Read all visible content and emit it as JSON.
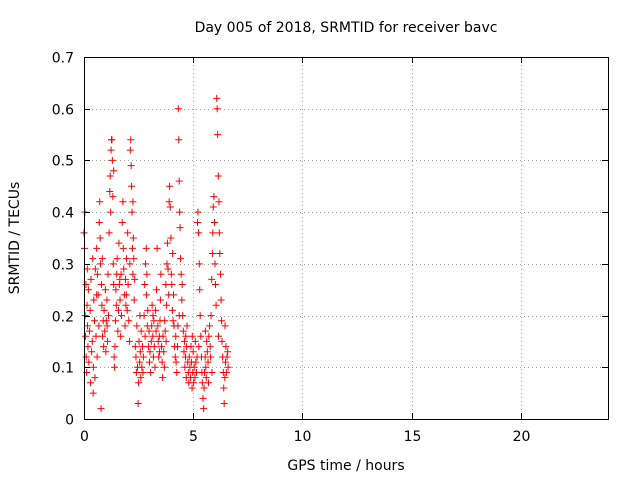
{
  "chart_data": {
    "type": "scatter",
    "title": "Day 005 of 2018, SRMTID for receiver bavc",
    "xlabel": "GPS time / hours",
    "ylabel": "SRMTID / TECUs",
    "xlim": [
      0,
      24
    ],
    "ylim": [
      0,
      0.7
    ],
    "x_ticks": [
      0,
      5,
      10,
      15,
      20
    ],
    "x_tick_labels": [
      "0",
      "5",
      "10",
      "15",
      "20"
    ],
    "y_ticks": [
      0,
      0.1,
      0.2,
      0.3,
      0.4,
      0.5,
      0.6,
      0.7
    ],
    "y_tick_labels": [
      "0",
      "0.1",
      "0.2",
      "0.3",
      "0.4",
      "0.5",
      "0.6",
      "0.7"
    ],
    "grid": true,
    "marker": "+",
    "marker_color": "#ff0000",
    "series": [
      {
        "name": "SRMTID",
        "points": [
          [
            0.0,
            0.36
          ],
          [
            0.02,
            0.33
          ],
          [
            0.04,
            0.4
          ],
          [
            0.05,
            0.2
          ],
          [
            0.07,
            0.16
          ],
          [
            0.09,
            0.26
          ],
          [
            0.1,
            0.12
          ],
          [
            0.12,
            0.09
          ],
          [
            0.14,
            0.22
          ],
          [
            0.16,
            0.18
          ],
          [
            0.18,
            0.14
          ],
          [
            0.2,
            0.25
          ],
          [
            0.22,
            0.11
          ],
          [
            0.25,
            0.17
          ],
          [
            0.28,
            0.21
          ],
          [
            0.3,
            0.07
          ],
          [
            0.32,
            0.27
          ],
          [
            0.35,
            0.13
          ],
          [
            0.38,
            0.15
          ],
          [
            0.4,
            0.31
          ],
          [
            0.43,
            0.1
          ],
          [
            0.45,
            0.23
          ],
          [
            0.48,
            0.19
          ],
          [
            0.5,
            0.08
          ],
          [
            0.52,
            0.29
          ],
          [
            0.55,
            0.16
          ],
          [
            0.58,
            0.33
          ],
          [
            0.6,
            0.12
          ],
          [
            0.62,
            0.28
          ],
          [
            0.65,
            0.24
          ],
          [
            0.68,
            0.18
          ],
          [
            0.7,
            0.38
          ],
          [
            0.72,
            0.42
          ],
          [
            0.74,
            0.35
          ],
          [
            0.76,
            0.3
          ],
          [
            0.78,
            0.02
          ],
          [
            0.8,
            0.26
          ],
          [
            0.82,
            0.22
          ],
          [
            0.85,
            0.16
          ],
          [
            0.88,
            0.19
          ],
          [
            0.9,
            0.14
          ],
          [
            0.92,
            0.21
          ],
          [
            0.95,
            0.17
          ],
          [
            0.98,
            0.25
          ],
          [
            1.0,
            0.13
          ],
          [
            1.02,
            0.19
          ],
          [
            1.05,
            0.23
          ],
          [
            1.08,
            0.15
          ],
          [
            1.1,
            0.28
          ],
          [
            1.12,
            0.2
          ],
          [
            1.15,
            0.36
          ],
          [
            1.18,
            0.44
          ],
          [
            1.2,
            0.47
          ],
          [
            1.22,
            0.4
          ],
          [
            1.24,
            0.52
          ],
          [
            1.26,
            0.54
          ],
          [
            1.28,
            0.54
          ],
          [
            1.3,
            0.5
          ],
          [
            1.32,
            0.43
          ],
          [
            1.34,
            0.3
          ],
          [
            1.36,
            0.26
          ],
          [
            1.38,
            0.12
          ],
          [
            1.4,
            0.1
          ],
          [
            1.42,
            0.14
          ],
          [
            1.44,
            0.19
          ],
          [
            1.46,
            0.25
          ],
          [
            1.48,
            0.22
          ],
          [
            1.5,
            0.28
          ],
          [
            1.52,
            0.31
          ],
          [
            1.55,
            0.17
          ],
          [
            1.58,
            0.21
          ],
          [
            1.6,
            0.34
          ],
          [
            1.62,
            0.26
          ],
          [
            1.65,
            0.23
          ],
          [
            1.68,
            0.16
          ],
          [
            1.7,
            0.28
          ],
          [
            1.72,
            0.2
          ],
          [
            1.75,
            0.38
          ],
          [
            1.78,
            0.42
          ],
          [
            1.8,
            0.33
          ],
          [
            1.82,
            0.29
          ],
          [
            1.85,
            0.24
          ],
          [
            1.88,
            0.18
          ],
          [
            1.9,
            0.27
          ],
          [
            1.92,
            0.22
          ],
          [
            1.95,
            0.31
          ],
          [
            1.98,
            0.21
          ],
          [
            2.0,
            0.36
          ],
          [
            2.02,
            0.26
          ],
          [
            2.05,
            0.19
          ],
          [
            2.08,
            0.15
          ],
          [
            2.1,
            0.3
          ],
          [
            2.12,
            0.52
          ],
          [
            2.14,
            0.54
          ],
          [
            2.16,
            0.49
          ],
          [
            2.18,
            0.45
          ],
          [
            2.2,
            0.4
          ],
          [
            2.22,
            0.33
          ],
          [
            2.24,
            0.28
          ],
          [
            2.26,
            0.35
          ],
          [
            2.28,
            0.31
          ],
          [
            2.3,
            0.23
          ],
          [
            2.32,
            0.27
          ],
          [
            2.35,
            0.14
          ],
          [
            2.38,
            0.12
          ],
          [
            2.4,
            0.09
          ],
          [
            2.42,
            0.18
          ],
          [
            2.45,
            0.1
          ],
          [
            2.48,
            0.03
          ],
          [
            2.5,
            0.07
          ],
          [
            2.52,
            0.15
          ],
          [
            2.55,
            0.11
          ],
          [
            2.58,
            0.13
          ],
          [
            2.6,
            0.08
          ],
          [
            2.62,
            0.17
          ],
          [
            2.65,
            0.1
          ],
          [
            2.68,
            0.14
          ],
          [
            2.7,
            0.09
          ],
          [
            2.72,
            0.12
          ],
          [
            2.75,
            0.2
          ],
          [
            2.78,
            0.26
          ],
          [
            2.8,
            0.16
          ],
          [
            2.82,
            0.3
          ],
          [
            2.85,
            0.33
          ],
          [
            2.88,
            0.28
          ],
          [
            2.9,
            0.18
          ],
          [
            2.92,
            0.21
          ],
          [
            2.95,
            0.14
          ],
          [
            2.98,
            0.17
          ],
          [
            3.0,
            0.11
          ],
          [
            3.02,
            0.13
          ],
          [
            3.05,
            0.09
          ],
          [
            3.08,
            0.15
          ],
          [
            3.1,
            0.18
          ],
          [
            3.12,
            0.22
          ],
          [
            3.15,
            0.16
          ],
          [
            3.18,
            0.12
          ],
          [
            3.2,
            0.19
          ],
          [
            3.22,
            0.14
          ],
          [
            3.25,
            0.1
          ],
          [
            3.28,
            0.21
          ],
          [
            3.3,
            0.17
          ],
          [
            3.32,
            0.25
          ],
          [
            3.35,
            0.33
          ],
          [
            3.38,
            0.18
          ],
          [
            3.4,
            0.15
          ],
          [
            3.42,
            0.12
          ],
          [
            3.45,
            0.16
          ],
          [
            3.48,
            0.19
          ],
          [
            3.5,
            0.23
          ],
          [
            3.52,
            0.28
          ],
          [
            3.55,
            0.14
          ],
          [
            3.58,
            0.11
          ],
          [
            3.6,
            0.08
          ],
          [
            3.62,
            0.16
          ],
          [
            3.65,
            0.13
          ],
          [
            3.68,
            0.1
          ],
          [
            3.7,
            0.19
          ],
          [
            3.72,
            0.17
          ],
          [
            3.75,
            0.26
          ],
          [
            3.78,
            0.22
          ],
          [
            3.8,
            0.3
          ],
          [
            3.82,
            0.34
          ],
          [
            3.85,
            0.29
          ],
          [
            3.88,
            0.24
          ],
          [
            3.9,
            0.42
          ],
          [
            3.92,
            0.45
          ],
          [
            3.95,
            0.41
          ],
          [
            3.98,
            0.35
          ],
          [
            4.0,
            0.28
          ],
          [
            4.02,
            0.26
          ],
          [
            4.05,
            0.21
          ],
          [
            4.08,
            0.19
          ],
          [
            4.1,
            0.24
          ],
          [
            4.12,
            0.18
          ],
          [
            4.15,
            0.14
          ],
          [
            4.18,
            0.12
          ],
          [
            4.2,
            0.16
          ],
          [
            4.22,
            0.11
          ],
          [
            4.25,
            0.09
          ],
          [
            4.28,
            0.14
          ],
          [
            4.3,
            0.18
          ],
          [
            4.32,
            0.6
          ],
          [
            4.34,
            0.54
          ],
          [
            4.36,
            0.46
          ],
          [
            4.38,
            0.4
          ],
          [
            4.4,
            0.37
          ],
          [
            4.42,
            0.31
          ],
          [
            4.45,
            0.28
          ],
          [
            4.48,
            0.23
          ],
          [
            4.5,
            0.26
          ],
          [
            4.52,
            0.2
          ],
          [
            4.55,
            0.17
          ],
          [
            4.58,
            0.13
          ],
          [
            4.6,
            0.15
          ],
          [
            4.62,
            0.1
          ],
          [
            4.65,
            0.12
          ],
          [
            4.68,
            0.08
          ],
          [
            4.7,
            0.14
          ],
          [
            4.72,
            0.18
          ],
          [
            4.75,
            0.11
          ],
          [
            4.78,
            0.09
          ],
          [
            4.8,
            0.07
          ],
          [
            4.82,
            0.12
          ],
          [
            4.85,
            0.1
          ],
          [
            4.88,
            0.08
          ],
          [
            4.9,
            0.14
          ],
          [
            4.92,
            0.11
          ],
          [
            4.95,
            0.06
          ],
          [
            4.98,
            0.09
          ],
          [
            5.0,
            0.13
          ],
          [
            5.02,
            0.07
          ],
          [
            5.05,
            0.1
          ],
          [
            5.08,
            0.08
          ],
          [
            5.1,
            0.15
          ],
          [
            5.12,
            0.11
          ],
          [
            5.15,
            0.09
          ],
          [
            5.18,
            0.12
          ],
          [
            5.2,
            0.38
          ],
          [
            5.22,
            0.4
          ],
          [
            5.25,
            0.36
          ],
          [
            5.28,
            0.3
          ],
          [
            5.3,
            0.25
          ],
          [
            5.32,
            0.2
          ],
          [
            5.35,
            0.16
          ],
          [
            5.38,
            0.12
          ],
          [
            5.4,
            0.09
          ],
          [
            5.42,
            0.07
          ],
          [
            5.45,
            0.04
          ],
          [
            5.48,
            0.02
          ],
          [
            5.5,
            0.06
          ],
          [
            5.52,
            0.09
          ],
          [
            5.55,
            0.12
          ],
          [
            5.58,
            0.1
          ],
          [
            5.6,
            0.08
          ],
          [
            5.62,
            0.15
          ],
          [
            5.65,
            0.13
          ],
          [
            5.68,
            0.11
          ],
          [
            5.7,
            0.07
          ],
          [
            5.72,
            0.16
          ],
          [
            5.75,
            0.18
          ],
          [
            5.78,
            0.14
          ],
          [
            5.8,
            0.12
          ],
          [
            5.82,
            0.2
          ],
          [
            5.85,
            0.27
          ],
          [
            5.88,
            0.32
          ],
          [
            5.9,
            0.36
          ],
          [
            5.92,
            0.41
          ],
          [
            5.95,
            0.43
          ],
          [
            5.98,
            0.38
          ],
          [
            6.0,
            0.3
          ],
          [
            6.02,
            0.26
          ],
          [
            6.05,
            0.22
          ],
          [
            6.08,
            0.62
          ],
          [
            6.1,
            0.6
          ],
          [
            6.12,
            0.55
          ],
          [
            6.15,
            0.47
          ],
          [
            6.18,
            0.42
          ],
          [
            6.2,
            0.36
          ],
          [
            6.22,
            0.32
          ],
          [
            6.25,
            0.28
          ],
          [
            6.28,
            0.23
          ],
          [
            6.3,
            0.19
          ],
          [
            6.32,
            0.15
          ],
          [
            6.35,
            0.12
          ],
          [
            6.38,
            0.09
          ],
          [
            6.4,
            0.06
          ],
          [
            6.42,
            0.03
          ],
          [
            6.45,
            0.08
          ],
          [
            6.48,
            0.11
          ],
          [
            6.5,
            0.14
          ],
          [
            6.52,
            0.09
          ],
          [
            6.55,
            0.12
          ],
          [
            6.58,
            0.13
          ],
          [
            6.6,
            0.1
          ],
          [
            0.15,
            0.29
          ],
          [
            0.42,
            0.05
          ],
          [
            0.58,
            0.24
          ],
          [
            0.84,
            0.31
          ],
          [
            1.06,
            0.18
          ],
          [
            1.36,
            0.48
          ],
          [
            1.64,
            0.27
          ],
          [
            1.94,
            0.24
          ],
          [
            2.24,
            0.42
          ],
          [
            2.56,
            0.2
          ],
          [
            2.86,
            0.24
          ],
          [
            3.16,
            0.2
          ],
          [
            3.46,
            0.13
          ],
          [
            3.76,
            0.15
          ],
          [
            4.06,
            0.32
          ],
          [
            4.36,
            0.2
          ],
          [
            4.66,
            0.16
          ],
          [
            4.96,
            0.16
          ],
          [
            5.26,
            0.14
          ],
          [
            5.56,
            0.17
          ],
          [
            5.86,
            0.09
          ],
          [
            6.16,
            0.16
          ],
          [
            6.46,
            0.18
          ]
        ]
      }
    ]
  }
}
